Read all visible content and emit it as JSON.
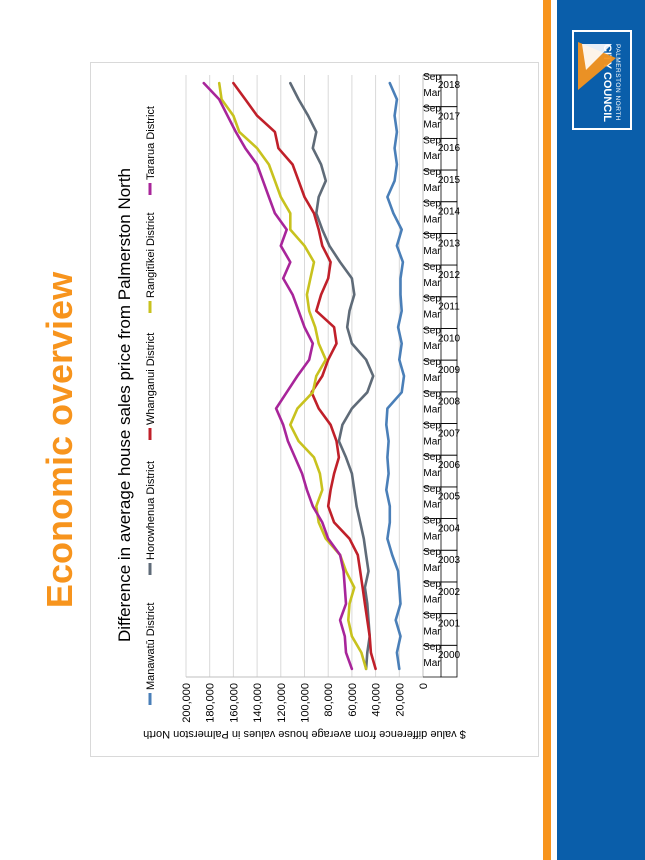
{
  "page": {
    "title": "Economic overview"
  },
  "brand": {
    "org_top": "PALMERSTON NORTH",
    "org_bottom": "CITY COUNCIL",
    "colors": {
      "blue": "#0a5eaa",
      "orange": "#f7941d",
      "title": "#f7941d"
    }
  },
  "chart_data": {
    "type": "line",
    "title": "Difference in average house sales price from Palmerston North",
    "ylabel": "$ value difference from average house values in Palmerston North",
    "xlabel": "",
    "ylim": [
      0,
      200000
    ],
    "y_ticks": [
      "0",
      "20,000",
      "40,000",
      "60,000",
      "80,000",
      "100,000",
      "120,000",
      "140,000",
      "160,000",
      "180,000",
      "200,000"
    ],
    "grid": true,
    "legend": "top",
    "years": [
      "2000",
      "2001",
      "2002",
      "2003",
      "2004",
      "2005",
      "2006",
      "2007",
      "2008",
      "2009",
      "2010",
      "2011",
      "2012",
      "2013",
      "2014",
      "2015",
      "2016",
      "2017",
      "2018"
    ],
    "periods": [
      "Mar",
      "Sep",
      "Mar",
      "Sep",
      "Mar",
      "Sep",
      "Mar",
      "Sep",
      "Mar",
      "Sep",
      "Mar",
      "Sep",
      "Mar",
      "Sep",
      "Mar",
      "Sep",
      "Mar",
      "Sep",
      "Mar",
      "Sep",
      "Mar",
      "Sep",
      "Mar",
      "Sep",
      "Mar",
      "Sep",
      "Mar",
      "Sep",
      "Mar",
      "Sep",
      "Mar",
      "Sep",
      "Mar",
      "Sep",
      "Mar",
      "Sep",
      "Mar",
      "Sep"
    ],
    "x": [
      2000.0,
      2000.5,
      2001.0,
      2001.5,
      2002.0,
      2002.5,
      2003.0,
      2003.5,
      2004.0,
      2004.5,
      2005.0,
      2005.5,
      2006.0,
      2006.5,
      2007.0,
      2007.5,
      2008.0,
      2008.5,
      2009.0,
      2009.5,
      2010.0,
      2010.5,
      2011.0,
      2011.5,
      2012.0,
      2012.5,
      2013.0,
      2013.5,
      2014.0,
      2014.5,
      2015.0,
      2015.5,
      2016.0,
      2016.5,
      2017.0,
      2017.5,
      2018.0
    ],
    "series": [
      {
        "name": "Manawatū District",
        "color": "#4a7fb8",
        "values": [
          20000,
          22000,
          19000,
          23000,
          19000,
          20000,
          21000,
          26000,
          30000,
          28000,
          28000,
          31000,
          29000,
          30000,
          29000,
          31000,
          30000,
          18000,
          16000,
          20000,
          18000,
          21000,
          18000,
          19000,
          19000,
          17000,
          22000,
          18000,
          25000,
          30000,
          24000,
          22000,
          24000,
          22000,
          24000,
          22000,
          28000
        ]
      },
      {
        "name": "Horowhenua District",
        "color": "#5f6b78",
        "values": [
          48000,
          47000,
          45000,
          46000,
          47000,
          49000,
          46000,
          48000,
          50000,
          53000,
          56000,
          58000,
          60000,
          65000,
          71000,
          68000,
          60000,
          47000,
          42000,
          48000,
          60000,
          64000,
          62000,
          58000,
          60000,
          70000,
          79000,
          85000,
          90000,
          88000,
          82000,
          86000,
          93000,
          90000,
          97000,
          105000,
          112000
        ]
      },
      {
        "name": "Whanganui District",
        "color": "#c0202a",
        "values": [
          40000,
          44000,
          45000,
          47000,
          49000,
          51000,
          53000,
          55000,
          62000,
          75000,
          80000,
          78000,
          75000,
          71000,
          73000,
          78000,
          88000,
          94000,
          85000,
          80000,
          73000,
          75000,
          90000,
          86000,
          80000,
          78000,
          85000,
          88000,
          92000,
          100000,
          105000,
          110000,
          122000,
          125000,
          140000,
          150000,
          160000
        ]
      },
      {
        "name": "Rangitīkei District",
        "color": "#c8c21e",
        "values": [
          48000,
          52000,
          60000,
          63000,
          62000,
          58000,
          65000,
          70000,
          82000,
          88000,
          90000,
          85000,
          87000,
          92000,
          105000,
          112000,
          106000,
          93000,
          90000,
          82000,
          88000,
          91000,
          96000,
          98000,
          95000,
          92000,
          100000,
          112000,
          112000,
          120000,
          125000,
          130000,
          140000,
          155000,
          160000,
          170000,
          172000
        ]
      },
      {
        "name": "Tararua District",
        "color": "#a8259a",
        "values": [
          60000,
          65000,
          66000,
          70000,
          65000,
          66000,
          67000,
          70000,
          80000,
          85000,
          93000,
          98000,
          102000,
          108000,
          114000,
          118000,
          124000,
          115000,
          106000,
          96000,
          93000,
          100000,
          105000,
          110000,
          118000,
          112000,
          120000,
          115000,
          125000,
          130000,
          135000,
          140000,
          150000,
          158000,
          165000,
          172000,
          185000
        ]
      }
    ]
  }
}
